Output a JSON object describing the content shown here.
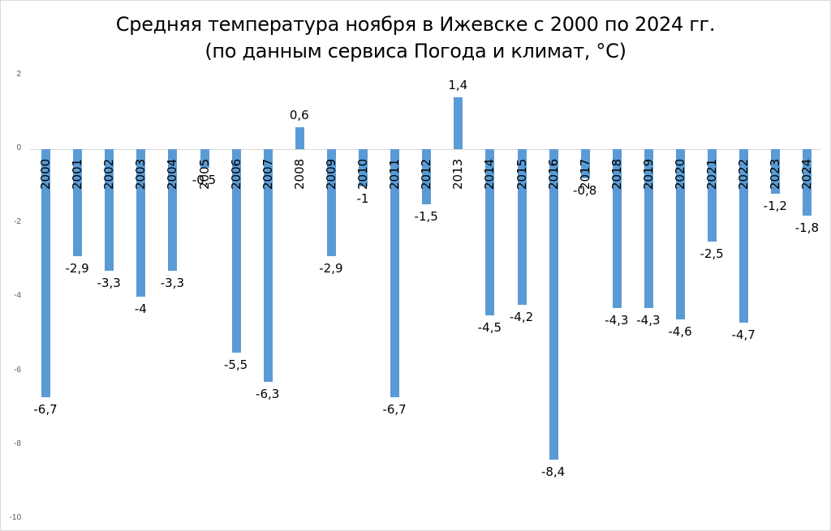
{
  "chart_data": {
    "type": "bar",
    "title": "Средняя температура ноября в Ижевске с 2000 по 2024 гг.",
    "subtitle": "(по данным сервиса Погода и климат, °C)",
    "xlabel": "",
    "ylabel": "",
    "ylim": [
      -10,
      2
    ],
    "yticks": [
      "2",
      "0",
      "-2",
      "-4",
      "-6",
      "-8",
      "-10"
    ],
    "grid": false,
    "legend": null,
    "bar_color": "#5b9bd5",
    "categories": [
      "2000",
      "2001",
      "2002",
      "2003",
      "2004",
      "2005",
      "2006",
      "2007",
      "2008",
      "2009",
      "2010",
      "2011",
      "2012",
      "2013",
      "2014",
      "2015",
      "2016",
      "2017",
      "2018",
      "2019",
      "2020",
      "2021",
      "2022",
      "2023",
      "2024"
    ],
    "values": [
      -6.7,
      -2.9,
      -3.3,
      -4,
      -3.3,
      -0.5,
      -5.5,
      -6.3,
      0.6,
      -2.9,
      -1,
      -6.7,
      -1.5,
      1.4,
      -4.5,
      -4.2,
      -8.4,
      -0.8,
      -4.3,
      -4.3,
      -4.6,
      -2.5,
      -4.7,
      -1.2,
      -1.8
    ],
    "value_labels": [
      "-6,7",
      "-2,9",
      "-3,3",
      "-4",
      "-3,3",
      "-0,5",
      "-5,5",
      "-6,3",
      "0,6",
      "-2,9",
      "-1",
      "-6,7",
      "-1,5",
      "1,4",
      "-4,5",
      "-4,2",
      "-8,4",
      "-0,8",
      "-4,3",
      "-4,3",
      "-4,6",
      "-2,5",
      "-4,7",
      "-1,2",
      "-1,8"
    ]
  }
}
